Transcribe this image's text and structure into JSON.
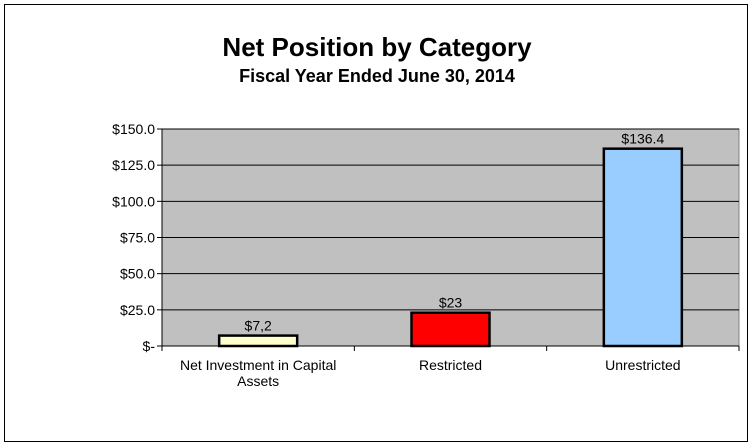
{
  "chart_data": {
    "type": "bar",
    "title": "Net Position by Category",
    "subtitle": "Fiscal Year Ended June 30, 2014",
    "categories": [
      "Net Investment in Capital Assets",
      "Restricted",
      "Unrestricted"
    ],
    "values": [
      7.2,
      23,
      136.4
    ],
    "data_labels": [
      "$7,2",
      "$23",
      "$136.4"
    ],
    "bar_colors": [
      "#FFFFCC",
      "#FF0000",
      "#99CCFF"
    ],
    "plot_background": "#C0C0C0",
    "ylim": [
      0,
      150
    ],
    "y_ticks": [
      0,
      25,
      50,
      75,
      100,
      125,
      150
    ],
    "y_tick_labels": [
      "$-",
      "$25.0",
      "$50.0",
      "$75.0",
      "$100.0",
      "$125.0",
      "$150.0"
    ],
    "xlabel": "",
    "ylabel": "",
    "grid": true,
    "legend": "none"
  }
}
